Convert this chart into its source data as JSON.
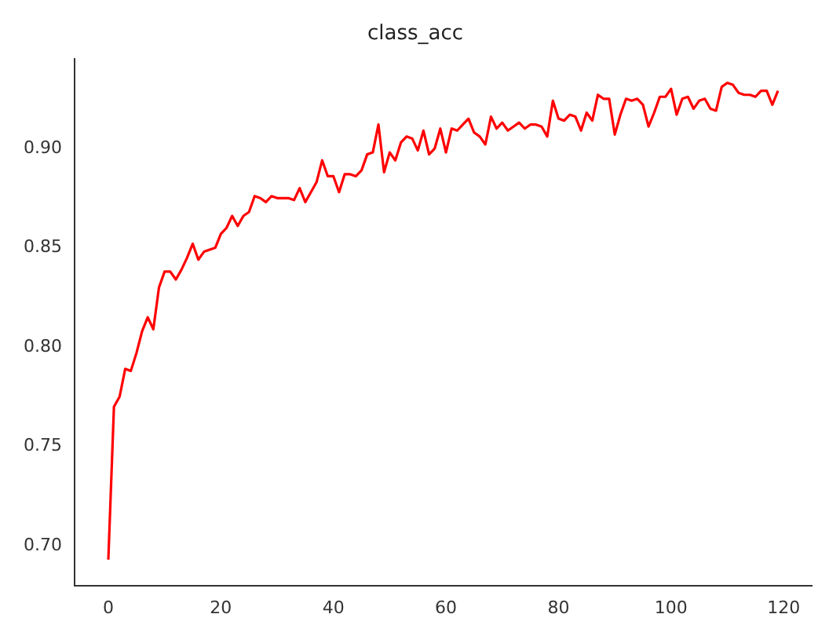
{
  "chart_data": {
    "type": "line",
    "title": "class_acc",
    "x": [
      0,
      1,
      2,
      3,
      4,
      5,
      6,
      7,
      8,
      9,
      10,
      11,
      12,
      13,
      14,
      15,
      16,
      17,
      18,
      19,
      20,
      21,
      22,
      23,
      24,
      25,
      26,
      27,
      28,
      29,
      30,
      31,
      32,
      33,
      34,
      35,
      36,
      37,
      38,
      39,
      40,
      41,
      42,
      43,
      44,
      45,
      46,
      47,
      48,
      49,
      50,
      51,
      52,
      53,
      54,
      55,
      56,
      57,
      58,
      59,
      60,
      61,
      62,
      63,
      64,
      65,
      66,
      67,
      68,
      69,
      70,
      71,
      72,
      73,
      74,
      75,
      76,
      77,
      78,
      79,
      80,
      81,
      82,
      83,
      84,
      85,
      86,
      87,
      88,
      89,
      90,
      91,
      92,
      93,
      94,
      95,
      96,
      97,
      98,
      99,
      100,
      101,
      102,
      103,
      104,
      105,
      106,
      107,
      108,
      109,
      110,
      111,
      112,
      113,
      114,
      115,
      116,
      117,
      118,
      119
    ],
    "series": [
      {
        "color": "#ff0000",
        "values": [
          0.693,
          0.77,
          0.775,
          0.789,
          0.788,
          0.797,
          0.808,
          0.815,
          0.809,
          0.83,
          0.838,
          0.838,
          0.834,
          0.839,
          0.845,
          0.852,
          0.844,
          0.848,
          0.849,
          0.85,
          0.857,
          0.86,
          0.866,
          0.861,
          0.866,
          0.868,
          0.876,
          0.875,
          0.873,
          0.876,
          0.875,
          0.875,
          0.875,
          0.874,
          0.88,
          0.873,
          0.878,
          0.883,
          0.894,
          0.886,
          0.886,
          0.878,
          0.887,
          0.887,
          0.886,
          0.889,
          0.897,
          0.898,
          0.912,
          0.888,
          0.898,
          0.894,
          0.903,
          0.906,
          0.905,
          0.899,
          0.909,
          0.897,
          0.9,
          0.91,
          0.898,
          0.91,
          0.909,
          0.912,
          0.915,
          0.908,
          0.906,
          0.902,
          0.916,
          0.91,
          0.913,
          0.909,
          0.911,
          0.913,
          0.91,
          0.912,
          0.912,
          0.911,
          0.906,
          0.924,
          0.915,
          0.914,
          0.917,
          0.916,
          0.909,
          0.918,
          0.914,
          0.927,
          0.925,
          0.925,
          0.907,
          0.917,
          0.925,
          0.924,
          0.925,
          0.922,
          0.911,
          0.918,
          0.926,
          0.926,
          0.93,
          0.917,
          0.925,
          0.926,
          0.92,
          0.924,
          0.925,
          0.92,
          0.919,
          0.931,
          0.933,
          0.932,
          0.928,
          0.927,
          0.927,
          0.926,
          0.929,
          0.929,
          0.922,
          0.929
        ]
      }
    ],
    "xlim": [
      -6,
      125
    ],
    "xticks": [
      0,
      20,
      40,
      60,
      80,
      100,
      120
    ],
    "ylim": [
      0.68,
      0.945
    ],
    "yticks": [
      {
        "value": 0.7,
        "label": "0.70"
      },
      {
        "value": 0.75,
        "label": "0.75"
      },
      {
        "value": 0.8,
        "label": "0.80"
      },
      {
        "value": 0.85,
        "label": "0.85"
      },
      {
        "value": 0.9,
        "label": "0.90"
      }
    ],
    "grid": false,
    "legend": false,
    "marker": "none",
    "line_style": "solid"
  }
}
